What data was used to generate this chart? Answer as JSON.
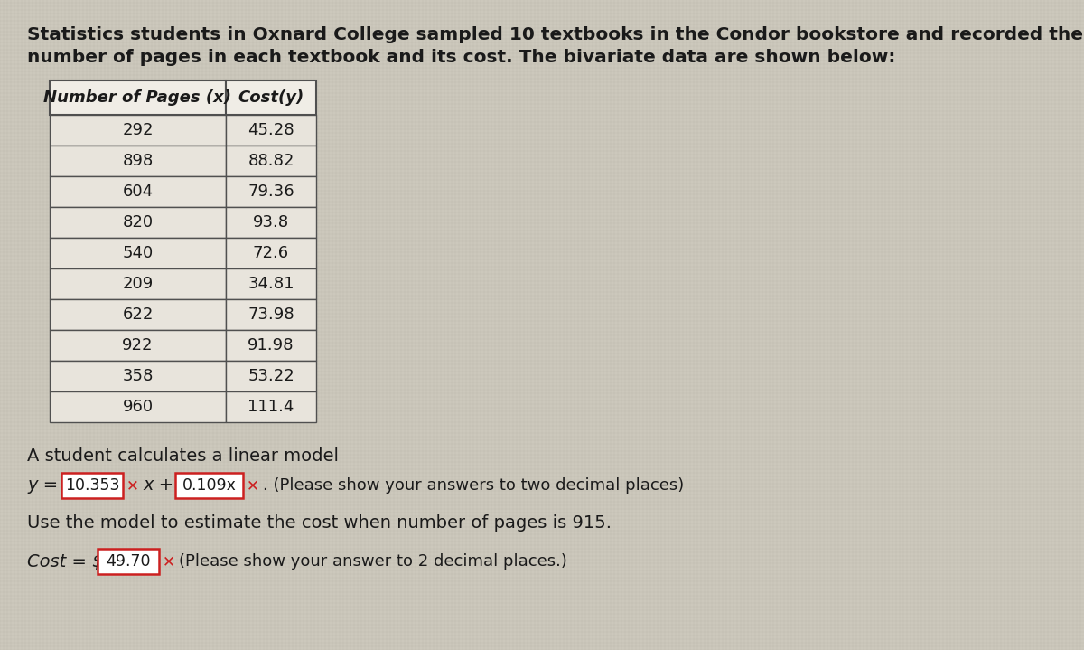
{
  "title_line1": "Statistics students in Oxnard College sampled 10 textbooks in the Condor bookstore and recorded the",
  "title_line2": "number of pages in each textbook and its cost. The bivariate data are shown below:",
  "col1_header": "Number of Pages (x)",
  "col2_header": "Cost(y)",
  "pages": [
    292,
    898,
    604,
    820,
    540,
    209,
    622,
    922,
    358,
    960
  ],
  "costs": [
    "45.28",
    "88.82",
    "79.36",
    "93.8",
    "72.6",
    "34.81",
    "73.98",
    "91.98",
    "53.22",
    "111.4"
  ],
  "linear_model_text": "A student calculates a linear model",
  "box1_value": "10.353",
  "box2_value": "0.109x",
  "box3_value": "49.70",
  "suffix_line": ". (Please show your answers to two decimal places)",
  "use_model_text": "Use the model to estimate the cost when number of pages is 915.",
  "cost_suffix": "(Please show your answer to 2 decimal places.)",
  "bg_color_light": "#d8d2c8",
  "bg_color_dark": "#c0bab0",
  "table_cell_bg": "#d0ccbf",
  "table_header_bg": "#ccc8bb",
  "table_border": "#505050",
  "box_border_color": "#cc2020",
  "text_color": "#1a1a1a",
  "texture_color1": "#c8c4b8",
  "texture_color2": "#d4d0c4"
}
